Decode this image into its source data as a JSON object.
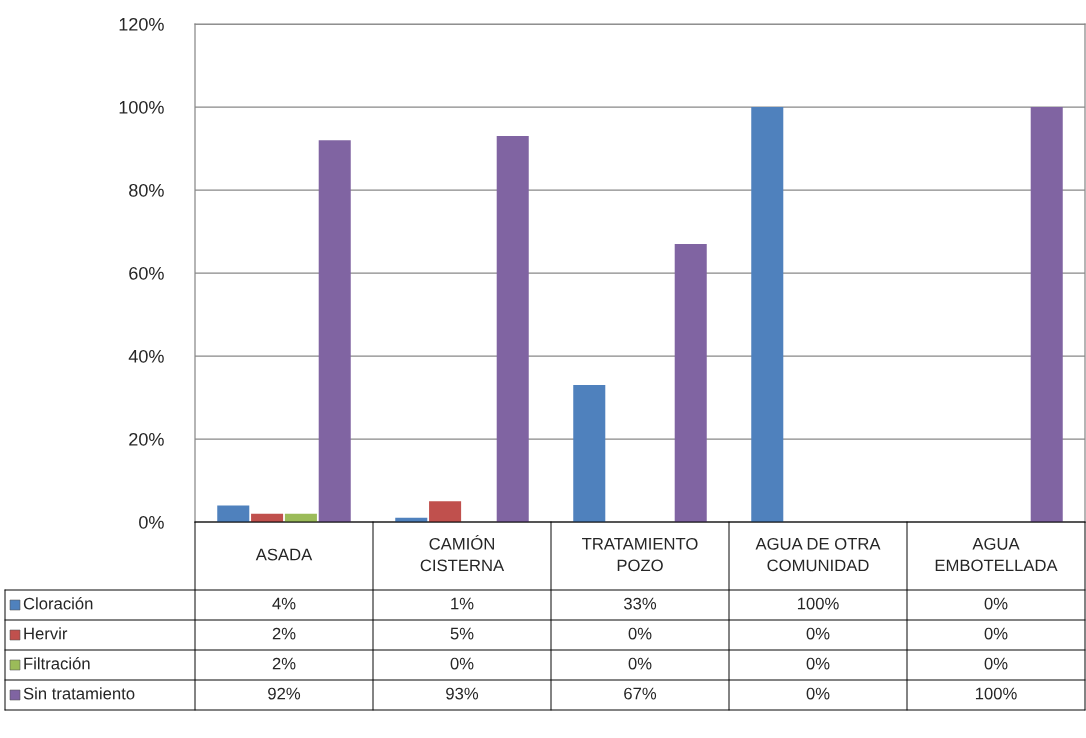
{
  "chart_data": {
    "type": "bar",
    "categories": [
      "ASADA",
      "CAMIÓN\nCISTERNA",
      "TRATAMIENTO\nPOZO",
      "AGUA DE OTRA\nCOMUNIDAD",
      "AGUA\nEMBOTELLADA"
    ],
    "series": [
      {
        "name": "Cloración",
        "color": "#4f81bd",
        "values": [
          4,
          1,
          33,
          100,
          0
        ],
        "value_labels": [
          "4%",
          "1%",
          "33%",
          "100%",
          "0%"
        ]
      },
      {
        "name": "Hervir",
        "color": "#c0504d",
        "values": [
          2,
          5,
          0,
          0,
          0
        ],
        "value_labels": [
          "2%",
          "5%",
          "0%",
          "0%",
          "0%"
        ]
      },
      {
        "name": "Filtración",
        "color": "#9bbb59",
        "values": [
          2,
          0,
          0,
          0,
          0
        ],
        "value_labels": [
          "2%",
          "0%",
          "0%",
          "0%",
          "0%"
        ]
      },
      {
        "name": "Sin tratamiento",
        "color": "#8064a2",
        "values": [
          92,
          93,
          67,
          0,
          100
        ],
        "value_labels": [
          "92%",
          "93%",
          "67%",
          "0%",
          "100%"
        ]
      }
    ],
    "ylim": [
      0,
      120
    ],
    "yticks": [
      {
        "value": 0,
        "label": "0%"
      },
      {
        "value": 20,
        "label": "20%"
      },
      {
        "value": 40,
        "label": "40%"
      },
      {
        "value": 60,
        "label": "60%"
      },
      {
        "value": 80,
        "label": "80%"
      },
      {
        "value": 100,
        "label": "100%"
      },
      {
        "value": 120,
        "label": "120%"
      }
    ],
    "grid": "y",
    "legend": "bottom left"
  }
}
